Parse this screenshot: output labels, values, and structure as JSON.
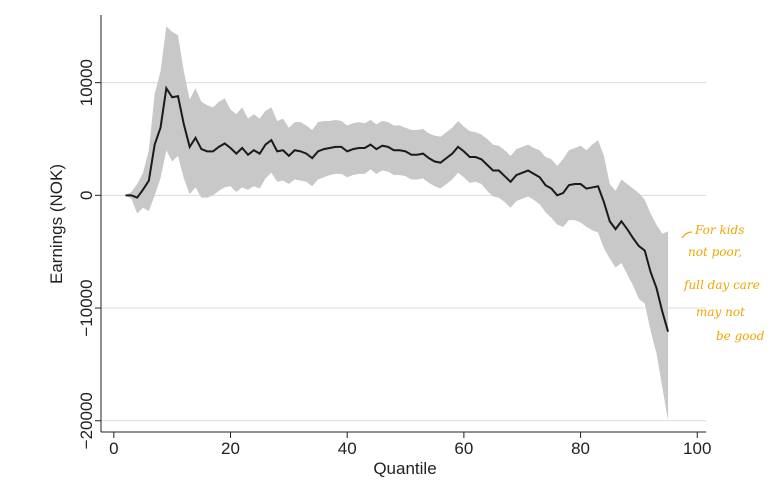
{
  "chart_data": {
    "type": "line",
    "xlabel": "Quantile",
    "ylabel": "Earnings (NOK)",
    "x": [
      2,
      3,
      4,
      5,
      6,
      7,
      8,
      9,
      10,
      11,
      12,
      13,
      14,
      15,
      16,
      17,
      18,
      19,
      20,
      21,
      22,
      23,
      24,
      25,
      26,
      27,
      28,
      29,
      30,
      31,
      32,
      33,
      34,
      35,
      36,
      37,
      38,
      39,
      40,
      41,
      42,
      43,
      44,
      45,
      46,
      47,
      48,
      49,
      50,
      51,
      52,
      53,
      54,
      55,
      56,
      57,
      58,
      59,
      60,
      61,
      62,
      63,
      64,
      65,
      66,
      67,
      68,
      69,
      70,
      71,
      72,
      73,
      74,
      75,
      76,
      77,
      78,
      79,
      80,
      81,
      82,
      83,
      84,
      85,
      86,
      87,
      88,
      89,
      90,
      91,
      92,
      93,
      94,
      95
    ],
    "values": [
      0,
      0,
      -200,
      500,
      1300,
      4500,
      6000,
      9500,
      8700,
      8800,
      6300,
      4300,
      5100,
      4100,
      3900,
      3900,
      4300,
      4600,
      4200,
      3700,
      4200,
      3600,
      4000,
      3700,
      4500,
      4900,
      3900,
      4000,
      3500,
      4000,
      3900,
      3700,
      3300,
      3900,
      4100,
      4200,
      4300,
      4300,
      3900,
      4100,
      4200,
      4200,
      4500,
      4100,
      4400,
      4300,
      4000,
      4000,
      3900,
      3600,
      3600,
      3700,
      3300,
      3000,
      2900,
      3300,
      3700,
      4300,
      3900,
      3400,
      3400,
      3200,
      2700,
      2200,
      2200,
      1700,
      1200,
      1800,
      2000,
      2200,
      1900,
      1600,
      900,
      600,
      0,
      200,
      900,
      1000,
      1000,
      600,
      700,
      800,
      -600,
      -2300,
      -3000,
      -2300,
      -3000,
      -3800,
      -4500,
      -4900,
      -6800,
      -8200,
      -10300,
      -12100
    ],
    "upper": [
      0,
      300,
      1000,
      2000,
      4000,
      9000,
      11000,
      15000,
      14500,
      14200,
      11000,
      8500,
      9500,
      8300,
      8000,
      7800,
      8300,
      8600,
      7600,
      7200,
      7800,
      6800,
      7200,
      6800,
      7500,
      7800,
      6600,
      6800,
      6000,
      6500,
      6500,
      6200,
      5800,
      6500,
      6600,
      6600,
      6700,
      6600,
      6200,
      6400,
      6500,
      6400,
      6700,
      6300,
      6600,
      6500,
      6200,
      6200,
      6000,
      5800,
      5800,
      5900,
      5500,
      5300,
      5200,
      5600,
      6000,
      6600,
      6100,
      5700,
      5600,
      5400,
      5000,
      4500,
      4400,
      4000,
      3500,
      4100,
      4300,
      4500,
      4200,
      4000,
      3400,
      3200,
      2600,
      3200,
      4000,
      4200,
      4400,
      4000,
      4500,
      4900,
      3500,
      1000,
      400,
      1400,
      1000,
      600,
      200,
      -400,
      -1600,
      -2600,
      -3400,
      -3200
    ],
    "lower": [
      0,
      -300,
      -1600,
      -1100,
      -1400,
      0,
      1500,
      4000,
      3000,
      3500,
      1500,
      100,
      700,
      -200,
      -200,
      0,
      400,
      700,
      800,
      300,
      700,
      500,
      800,
      600,
      1500,
      2000,
      1200,
      1300,
      1000,
      1400,
      1300,
      1200,
      800,
      1400,
      1600,
      1800,
      1900,
      1900,
      1600,
      1800,
      1900,
      1900,
      2300,
      1900,
      2200,
      2100,
      1800,
      1800,
      1700,
      1400,
      1400,
      1500,
      1100,
      800,
      600,
      1000,
      1400,
      2000,
      1600,
      1100,
      1200,
      1000,
      400,
      -100,
      -200,
      -600,
      -1100,
      -500,
      -300,
      -100,
      -400,
      -800,
      -1500,
      -2000,
      -2600,
      -2800,
      -2200,
      -2200,
      -2400,
      -2800,
      -3100,
      -3300,
      -4700,
      -5600,
      -6400,
      -6000,
      -7000,
      -8000,
      -9200,
      -9600,
      -12000,
      -14000,
      -17000,
      -20000
    ],
    "color": "#1a1a1a",
    "band_color": "#c8c8c8",
    "xlim": [
      -2.2,
      101.5
    ],
    "ylim": [
      -21000,
      16000
    ],
    "xticks": [
      0,
      20,
      40,
      60,
      80,
      100
    ],
    "yticks": [
      {
        "value": -20000,
        "label": "−20000"
      },
      {
        "value": -10000,
        "label": "−10000"
      },
      0,
      10000
    ],
    "grid": true,
    "annotation": [
      "For kids",
      "not poor,",
      "full day care",
      "may not",
      "be good"
    ]
  }
}
